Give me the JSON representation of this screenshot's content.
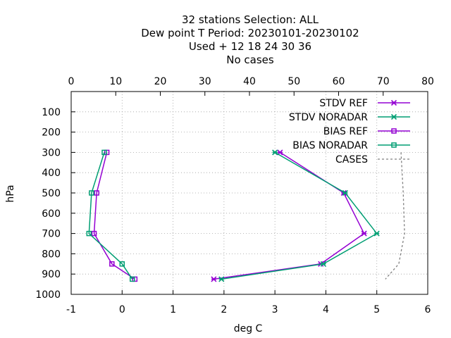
{
  "chart_data": {
    "type": "line",
    "title_lines": [
      "32 stations Selection: ALL",
      "Dew point T  Period: 20230101-20230102",
      "Used   + 12 18 24 30 36",
      "No cases"
    ],
    "xlabel": "deg C",
    "ylabel": "hPa",
    "x_ticks": [
      "-1",
      "0",
      "1",
      "2",
      "3",
      "4",
      "5",
      "6"
    ],
    "x2_ticks": [
      "0",
      "10",
      "20",
      "30",
      "40",
      "50",
      "60",
      "70",
      "80"
    ],
    "y_ticks": [
      "100",
      "200",
      "300",
      "400",
      "500",
      "600",
      "700",
      "800",
      "900",
      "1000"
    ],
    "xlim": [
      -1,
      6
    ],
    "x2lim": [
      0,
      80
    ],
    "ylim": [
      1000,
      0
    ],
    "grid": true,
    "legend_position": "top-right",
    "series": [
      {
        "name": "STDV REF",
        "color": "#9400d3",
        "marker": "x-star",
        "axis": "bottom",
        "points": [
          [
            3.1,
            300
          ],
          [
            4.35,
            500
          ],
          [
            4.75,
            700
          ],
          [
            3.9,
            850
          ],
          [
            1.8,
            925
          ]
        ]
      },
      {
        "name": "STDV NORADAR",
        "color": "#009e73",
        "marker": "x-star",
        "axis": "bottom",
        "points": [
          [
            3.0,
            300
          ],
          [
            4.38,
            500
          ],
          [
            5.0,
            700
          ],
          [
            3.95,
            850
          ],
          [
            1.95,
            925
          ]
        ]
      },
      {
        "name": "BIAS REF",
        "color": "#9400d3",
        "marker": "square",
        "axis": "bottom",
        "points": [
          [
            -0.3,
            300
          ],
          [
            -0.5,
            500
          ],
          [
            -0.55,
            700
          ],
          [
            -0.2,
            850
          ],
          [
            0.25,
            925
          ]
        ]
      },
      {
        "name": "BIAS NORADAR",
        "color": "#009e73",
        "marker": "square",
        "axis": "bottom",
        "points": [
          [
            -0.35,
            300
          ],
          [
            -0.6,
            500
          ],
          [
            -0.65,
            700
          ],
          [
            0.0,
            850
          ],
          [
            0.2,
            925
          ]
        ]
      },
      {
        "name": "CASES",
        "color": "#808080",
        "marker": "none",
        "dashed": true,
        "axis": "top",
        "points": [
          [
            74,
            300
          ],
          [
            74.5,
            500
          ],
          [
            74.8,
            700
          ],
          [
            73.5,
            850
          ],
          [
            70.5,
            925
          ]
        ]
      }
    ]
  }
}
